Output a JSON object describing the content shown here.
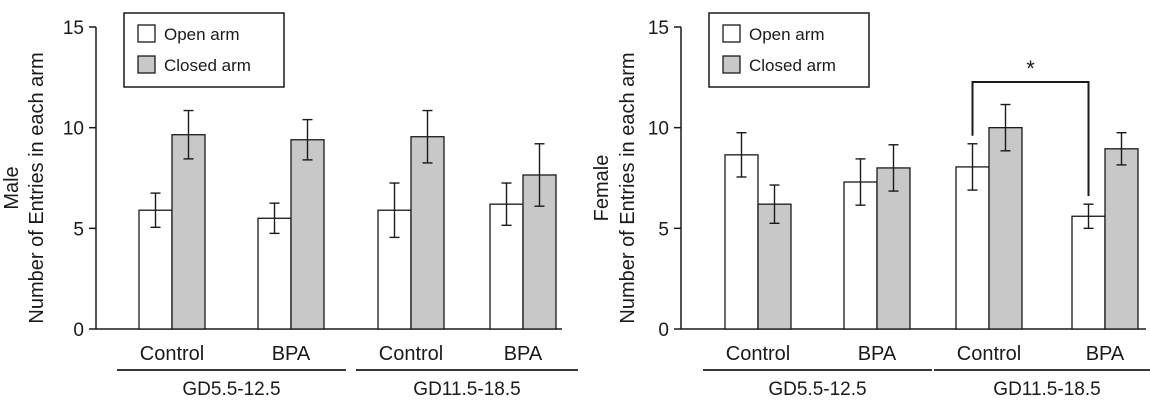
{
  "chart_data": [
    {
      "type": "bar",
      "ylabel_top": "Male",
      "ylabel": "Number of Entries in each arm",
      "ylim": [
        0,
        15
      ],
      "yticks": [
        "0",
        "5",
        "10",
        "15"
      ],
      "categories": [
        "Control",
        "BPA",
        "Control",
        "BPA"
      ],
      "groups": [
        {
          "label": "GD5.5-12.5",
          "categories": [
            0,
            1
          ]
        },
        {
          "label": "GD11.5-18.5",
          "categories": [
            2,
            3
          ]
        }
      ],
      "legend": {
        "placement": "top-left",
        "items": [
          "Open arm",
          "Closed arm"
        ]
      },
      "series": [
        {
          "name": "Open arm",
          "color": "#ffffff",
          "values": [
            5.9,
            5.5,
            5.9,
            6.2
          ],
          "errors": [
            0.85,
            0.75,
            1.35,
            1.05
          ]
        },
        {
          "name": "Closed arm",
          "color": "#c8c8c8",
          "values": [
            9.65,
            9.4,
            9.55,
            7.65
          ],
          "errors": [
            1.2,
            1.0,
            1.3,
            1.55
          ]
        }
      ]
    },
    {
      "type": "bar",
      "ylabel_top": "Female",
      "ylabel": "Number of Entries in each arm",
      "ylim": [
        0,
        15
      ],
      "yticks": [
        "0",
        "5",
        "10",
        "15"
      ],
      "categories": [
        "Control",
        "BPA",
        "Control",
        "BPA"
      ],
      "groups": [
        {
          "label": "GD5.5-12.5",
          "categories": [
            0,
            1
          ]
        },
        {
          "label": "GD11.5-18.5",
          "categories": [
            2,
            3
          ]
        }
      ],
      "legend": {
        "placement": "top-left",
        "items": [
          "Open arm",
          "Closed arm"
        ]
      },
      "series": [
        {
          "name": "Open arm",
          "color": "#ffffff",
          "values": [
            8.65,
            7.3,
            8.05,
            5.6
          ],
          "errors": [
            1.1,
            1.15,
            1.15,
            0.6
          ]
        },
        {
          "name": "Closed arm",
          "color": "#c8c8c8",
          "values": [
            6.2,
            8.0,
            10.0,
            8.95
          ],
          "errors": [
            0.95,
            1.15,
            1.15,
            0.8
          ]
        }
      ],
      "significance": {
        "label": "*",
        "from_category": 2,
        "to_category": 3,
        "series": "Open arm"
      }
    }
  ]
}
